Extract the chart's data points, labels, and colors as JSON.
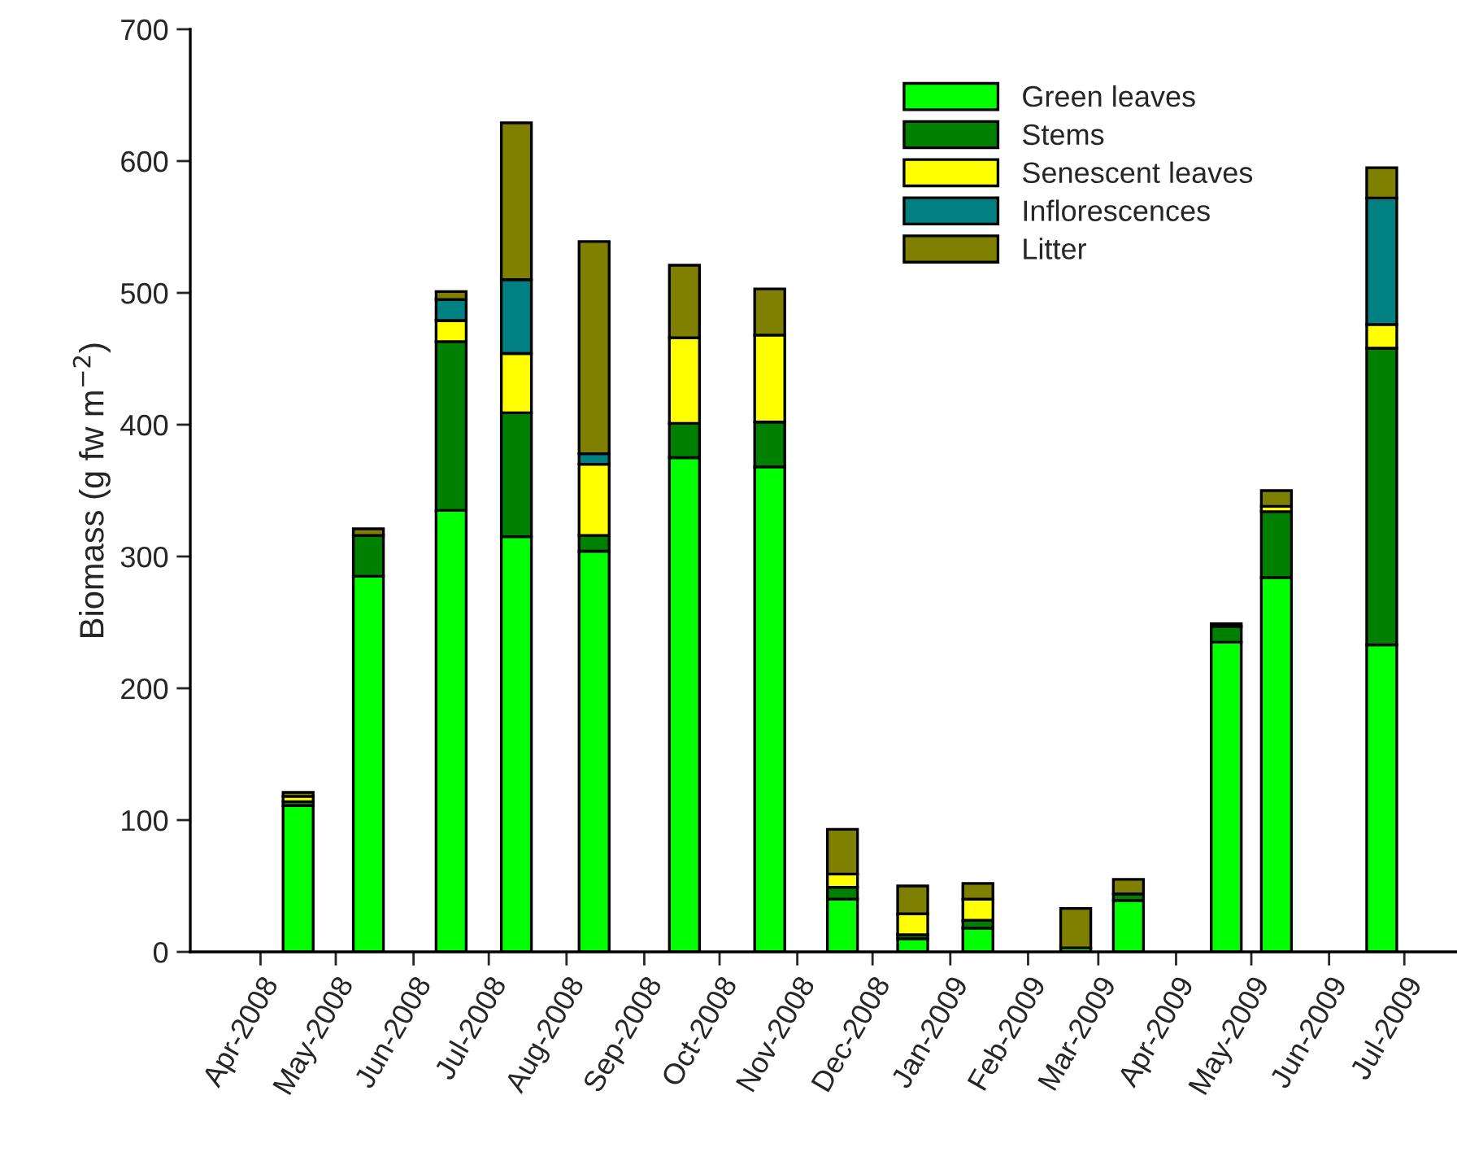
{
  "chart_data": {
    "type": "bar",
    "stacked": true,
    "ylabel": "Biomass (g fw m$^{−2}$)",
    "x": [
      "2008-04-16",
      "2008-05-14",
      "2008-06-16",
      "2008-07-12",
      "2008-08-12",
      "2008-09-17",
      "2008-10-21",
      "2008-11-19",
      "2008-12-17",
      "2009-01-12",
      "2009-02-20",
      "2009-03-13",
      "2009-04-21",
      "2009-05-11",
      "2009-06-22"
    ],
    "series": [
      {
        "name": "Green leaves",
        "color": "#00ff00",
        "values": [
          111,
          285,
          335,
          315,
          304,
          375,
          368,
          40,
          10,
          18,
          3,
          39,
          235,
          284,
          233
        ]
      },
      {
        "name": "Stems",
        "color": "#008000",
        "values": [
          3,
          31,
          128,
          94,
          12,
          26,
          34,
          9,
          3,
          6,
          null,
          5,
          12,
          50,
          225
        ]
      },
      {
        "name": "Senescent leaves",
        "color": "#ffff00",
        "values": [
          4,
          null,
          16,
          45,
          54,
          65,
          66,
          10,
          16,
          16,
          null,
          null,
          null,
          4,
          18
        ]
      },
      {
        "name": "Inflorescences",
        "color": "#008080",
        "values": [
          null,
          null,
          16,
          56,
          8,
          null,
          null,
          null,
          null,
          null,
          null,
          null,
          null,
          null,
          96
        ]
      },
      {
        "name": "Litter",
        "color": "#808000",
        "values": [
          3,
          5,
          6,
          119,
          161,
          55,
          35,
          34,
          21,
          12,
          30,
          11,
          2,
          12,
          23
        ]
      }
    ],
    "ylim": [
      0,
      700
    ],
    "yticks": [
      0,
      100,
      200,
      300,
      400,
      500,
      600,
      700
    ],
    "xlim": [
      "2008-03-04",
      "2009-07-22"
    ],
    "xticks": [
      {
        "value": "2008-04-01",
        "label": "Apr-2008"
      },
      {
        "value": "2008-05-01",
        "label": "May-2008"
      },
      {
        "value": "2008-06-01",
        "label": "Jun-2008"
      },
      {
        "value": "2008-07-01",
        "label": "Jul-2008"
      },
      {
        "value": "2008-08-01",
        "label": "Aug-2008"
      },
      {
        "value": "2008-09-01",
        "label": "Sep-2008"
      },
      {
        "value": "2008-10-01",
        "label": "Oct-2008"
      },
      {
        "value": "2008-11-01",
        "label": "Nov-2008"
      },
      {
        "value": "2008-12-01",
        "label": "Dec-2008"
      },
      {
        "value": "2009-01-01",
        "label": "Jan-2009"
      },
      {
        "value": "2009-02-01",
        "label": "Feb-2009"
      },
      {
        "value": "2009-03-01",
        "label": "Mar-2009"
      },
      {
        "value": "2009-04-01",
        "label": "Apr-2009"
      },
      {
        "value": "2009-05-01",
        "label": "May-2009"
      },
      {
        "value": "2009-06-01",
        "label": "Jun-2009"
      },
      {
        "value": "2009-07-01",
        "label": "Jul-2009"
      }
    ],
    "grid": false,
    "legend": "top right"
  }
}
